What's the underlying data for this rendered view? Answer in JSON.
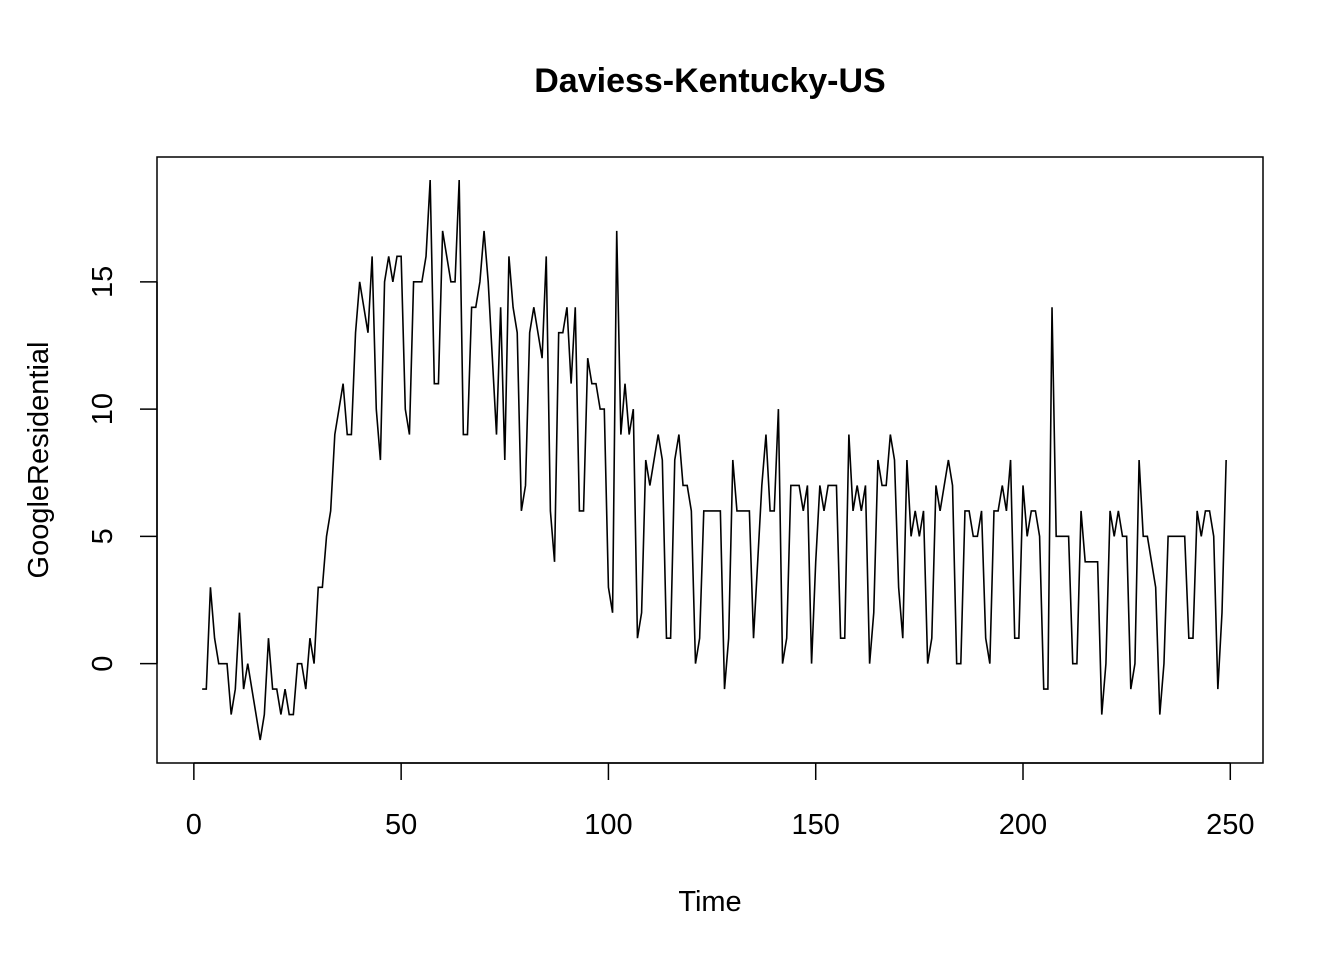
{
  "chart_data": {
    "type": "line",
    "title": "Daviess-Kentucky-US",
    "xlabel": "Time",
    "ylabel": "GoogleResidential",
    "xlim": [
      1,
      248
    ],
    "ylim": [
      -3,
      19
    ],
    "x_ticks": [
      0,
      50,
      100,
      150,
      200,
      250
    ],
    "y_ticks": [
      0,
      5,
      10,
      15
    ],
    "x_tick_labels": [
      "0",
      "50",
      "100",
      "150",
      "200",
      "250"
    ],
    "y_tick_labels": [
      "0",
      "5",
      "10",
      "15"
    ],
    "grid": false,
    "legend": "none",
    "line_color": "#000000",
    "series": [
      {
        "x_start": 2,
        "values": [
          -1,
          -1,
          3,
          1,
          0,
          0,
          0,
          -2,
          -1,
          2,
          -1,
          0,
          -1,
          -2,
          -3,
          -2,
          1,
          -1,
          -1,
          -2,
          -1,
          -2,
          -2,
          0,
          0,
          -1,
          1,
          0,
          3,
          3,
          5,
          6,
          9,
          10,
          11,
          9,
          9,
          13,
          15,
          14,
          13,
          16,
          10,
          8,
          15,
          16,
          15,
          16,
          16,
          10,
          9,
          15,
          15,
          15,
          16,
          19,
          11,
          11,
          17,
          16,
          15,
          15,
          19,
          9,
          9,
          14,
          14,
          15,
          17,
          15,
          12,
          9,
          14,
          8,
          16,
          14,
          13,
          6,
          7,
          13,
          14,
          13,
          12,
          16,
          6,
          4,
          13,
          13,
          14,
          11,
          14,
          6,
          6,
          12,
          11,
          11,
          10,
          10,
          3,
          2,
          17,
          9,
          11,
          9,
          10,
          1,
          2,
          8,
          7,
          8,
          9,
          8,
          1,
          1,
          8,
          9,
          7,
          7,
          6,
          0,
          1,
          6,
          6,
          6,
          6,
          6,
          -1,
          1,
          8,
          6,
          6,
          6,
          6,
          1,
          4,
          7,
          9,
          6,
          6,
          10,
          0,
          1,
          7,
          7,
          7,
          6,
          7,
          0,
          4,
          7,
          6,
          7,
          7,
          7,
          1,
          1,
          9,
          6,
          7,
          6,
          7,
          0,
          2,
          8,
          7,
          7,
          9,
          8,
          3,
          1,
          8,
          5,
          6,
          5,
          6,
          0,
          1,
          7,
          6,
          7,
          8,
          7,
          0,
          0,
          6,
          6,
          5,
          5,
          6,
          1,
          0,
          6,
          6,
          7,
          6,
          8,
          1,
          1,
          7,
          5,
          6,
          6,
          5,
          -1,
          -1,
          14,
          5,
          5,
          5,
          5,
          0,
          0,
          6,
          4,
          4,
          4,
          4,
          -2,
          0,
          6,
          5,
          6,
          5,
          5,
          -1,
          0,
          8,
          5,
          5,
          4,
          3,
          -2,
          0,
          5,
          5,
          5,
          5,
          5,
          1,
          1,
          6,
          5,
          6,
          6,
          5,
          -1,
          2,
          8
        ]
      }
    ]
  }
}
